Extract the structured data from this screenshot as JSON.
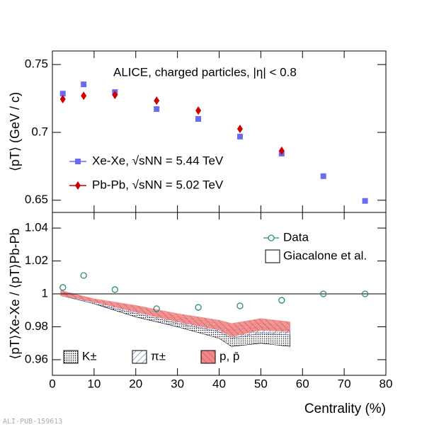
{
  "chart_data": [
    {
      "type": "scatter",
      "title": "ALICE, charged particles, |η| < 0.8",
      "y_label": "⟨pT⟩ (GeV / c)",
      "x": [
        2.5,
        7.5,
        15,
        25,
        35,
        45,
        55,
        65,
        75
      ],
      "series": [
        {
          "name": "Xe-Xe, √sNN = 5.44 TeV",
          "color": "#6b6bf0",
          "marker": "square",
          "values": [
            0.7286,
            0.7354,
            0.7297,
            0.7172,
            0.7099,
            0.6969,
            0.6844,
            0.6677,
            0.6495
          ]
        },
        {
          "name": "Pb-Pb, √sNN = 5.02 TeV",
          "color": "#cc0000",
          "marker": "diamond",
          "values": [
            0.7245,
            0.727,
            0.7276,
            0.7234,
            0.7161,
            0.7026,
            0.6865,
            null,
            null
          ]
        }
      ],
      "xlim": [
        0,
        80
      ],
      "xticks": [
        0,
        10,
        20,
        30,
        40,
        50,
        60,
        70,
        80
      ],
      "ylim": [
        0.641,
        0.76
      ],
      "yticks": [
        0.65,
        0.7,
        0.75
      ]
    },
    {
      "type": "scatter",
      "x_label": "Centrality (%)",
      "y_label": "⟨pT⟩Xe-Xe / ⟨pT⟩Pb-Pb",
      "x": [
        2.5,
        7.5,
        15,
        25,
        35,
        45,
        55,
        65,
        75
      ],
      "series": [
        {
          "name": "Data",
          "color": "#2e8b7a",
          "marker": "circle",
          "values": [
            1.0039,
            1.0112,
            1.0026,
            0.991,
            0.9918,
            0.9927,
            0.9961,
            1.0,
            1.0
          ]
        }
      ],
      "model_label": "Giacalone et al.",
      "band_x": [
        2,
        10,
        20,
        30,
        40,
        43,
        50,
        57
      ],
      "bands": [
        {
          "name": "K±",
          "color": "#000000",
          "pattern": "dots",
          "upper": [
            1.001,
            0.995,
            0.99,
            0.985,
            0.98,
            0.978,
            0.98,
            0.978
          ],
          "lower": [
            0.999,
            0.994,
            0.986,
            0.98,
            0.973,
            0.968,
            0.97,
            0.968
          ]
        },
        {
          "name": "π±",
          "color": "#5566aa",
          "pattern": "hatch",
          "upper": [
            1.002,
            0.996,
            0.992,
            0.986,
            0.982,
            0.98,
            0.982,
            0.98
          ],
          "lower": [
            0.999,
            0.994,
            0.988,
            0.982,
            0.977,
            0.973,
            0.976,
            0.975
          ]
        },
        {
          "name": "p, p̄",
          "color": "#f08a8a",
          "pattern": "fill",
          "upper": [
            1.002,
            0.997,
            0.993,
            0.988,
            0.984,
            0.982,
            0.985,
            0.983
          ],
          "lower": [
            0.999,
            0.995,
            0.989,
            0.983,
            0.978,
            0.974,
            0.978,
            0.977
          ]
        }
      ],
      "hline": 1,
      "xlim": [
        0,
        80
      ],
      "xticks": [
        0,
        10,
        20,
        30,
        40,
        50,
        60,
        70,
        80
      ],
      "ylim": [
        0.9505,
        1.0495
      ],
      "yticks": [
        0.96,
        0.98,
        1,
        1.02,
        1.04
      ]
    }
  ],
  "footer_note": "ALI-PUB-159613"
}
